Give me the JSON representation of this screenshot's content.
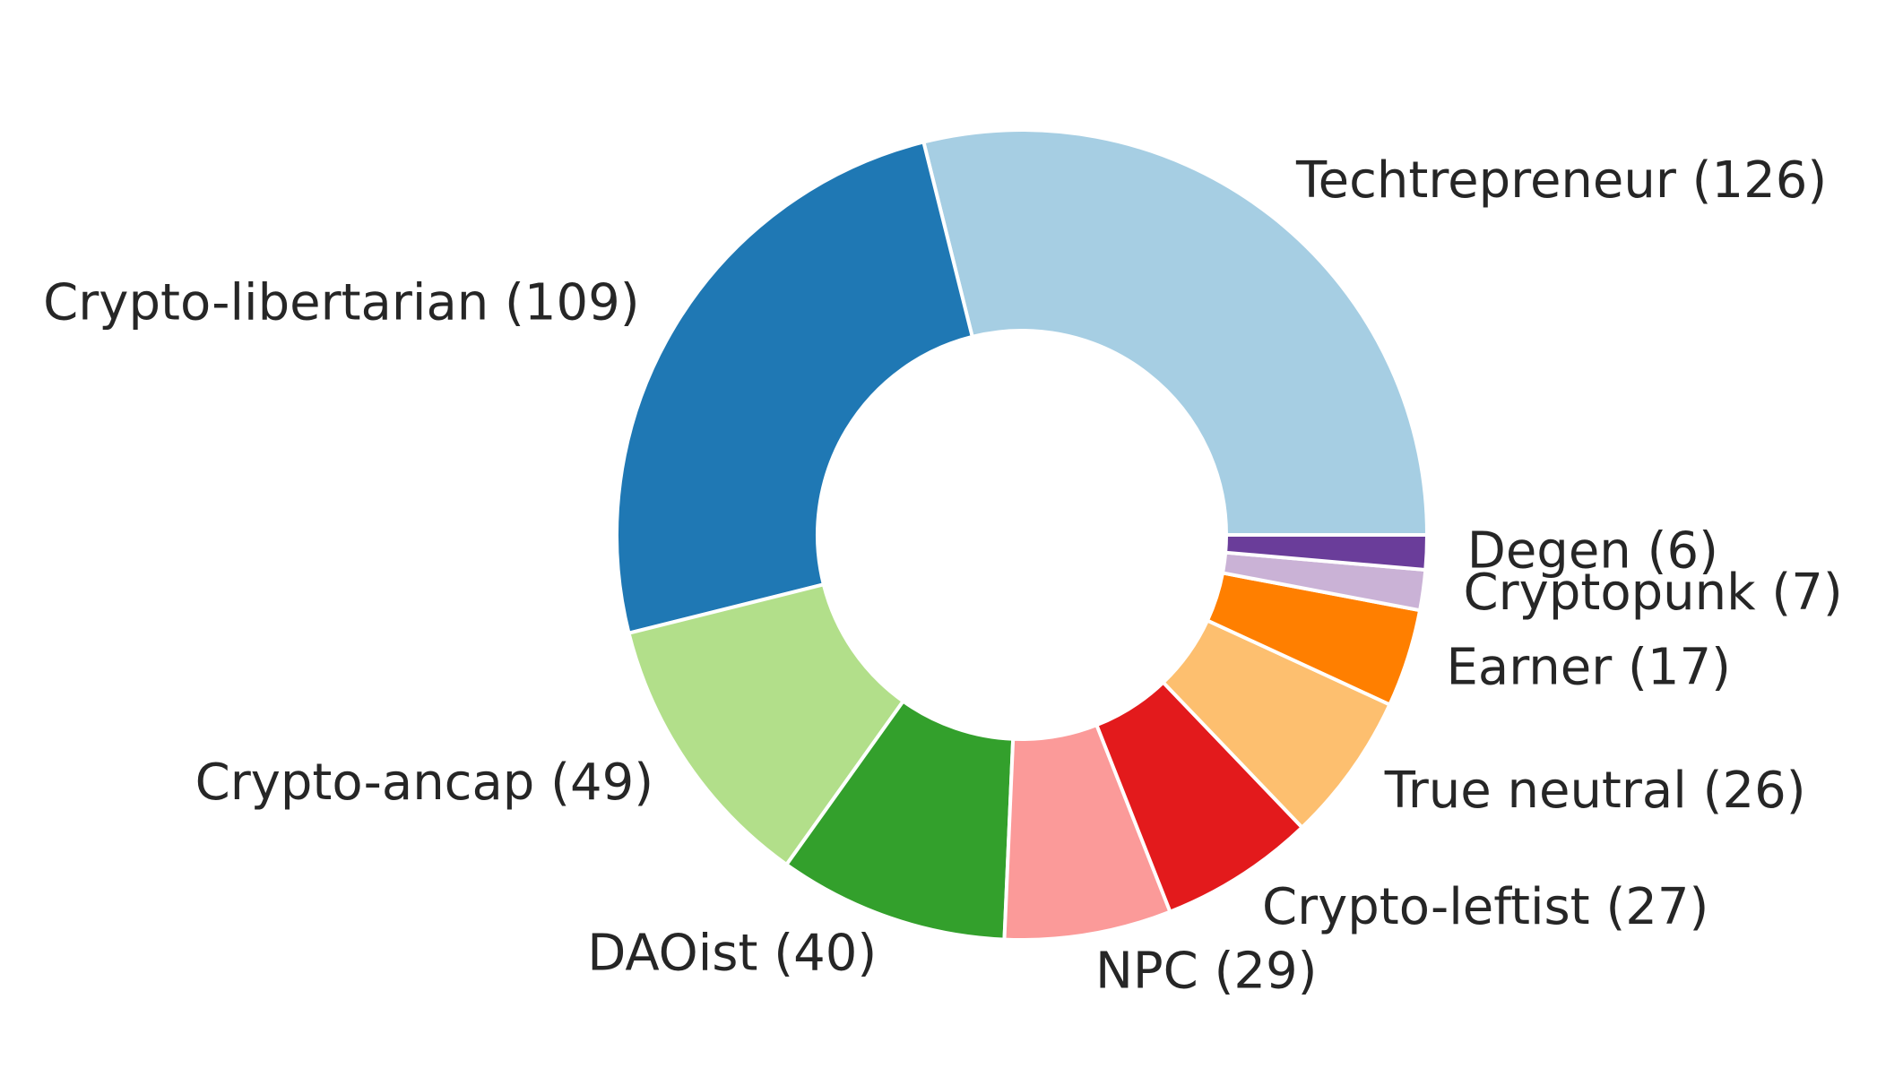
{
  "chart_data": {
    "type": "pie",
    "donut": true,
    "title": "",
    "start_angle": 0,
    "direction": "counterclockwise",
    "label_format": "{label} ({value})",
    "edge_color": "#ffffff",
    "label_color": "#262626",
    "slices": [
      {
        "label": "Techtrepreneur",
        "value": 126,
        "color": "#a6cee3"
      },
      {
        "label": "Crypto-libertarian",
        "value": 109,
        "color": "#1f78b4"
      },
      {
        "label": "Crypto-ancap",
        "value": 49,
        "color": "#b2df8a"
      },
      {
        "label": "DAOist",
        "value": 40,
        "color": "#33a02c"
      },
      {
        "label": "NPC",
        "value": 29,
        "color": "#fb9a99"
      },
      {
        "label": "Crypto-leftist",
        "value": 27,
        "color": "#e31a1c"
      },
      {
        "label": "True neutral",
        "value": 26,
        "color": "#fdbf6f"
      },
      {
        "label": "Earner",
        "value": 17,
        "color": "#ff7f00"
      },
      {
        "label": "Cryptopunk",
        "value": 7,
        "color": "#cab2d6"
      },
      {
        "label": "Degen",
        "value": 6,
        "color": "#6a3d9a"
      }
    ]
  }
}
